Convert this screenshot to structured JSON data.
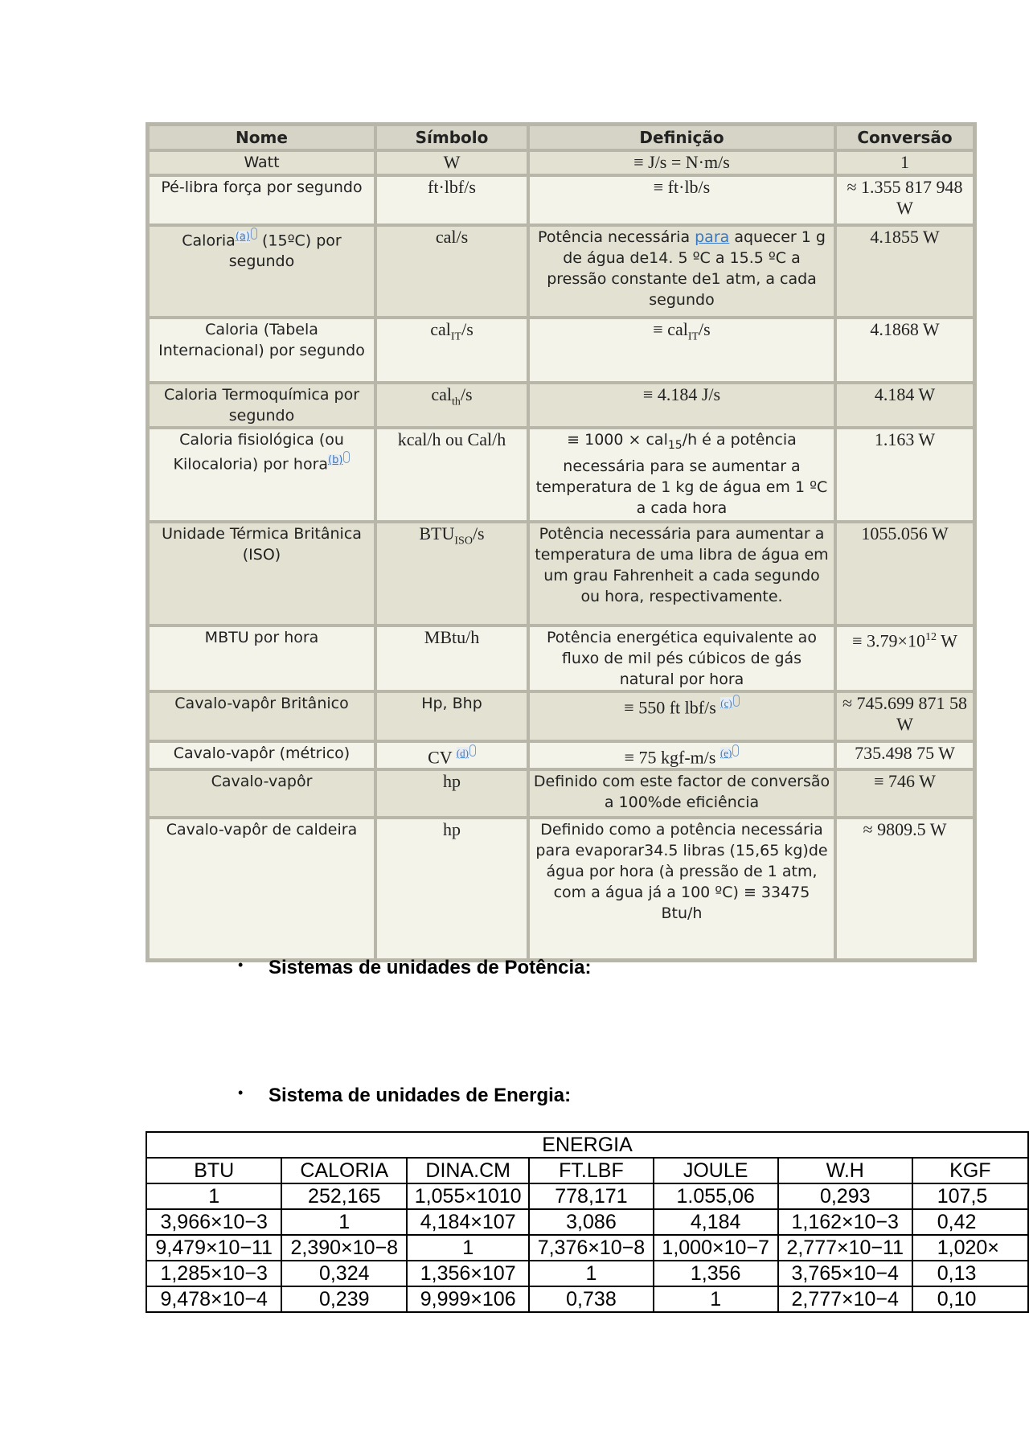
{
  "power_table": {
    "headers": [
      "Nome",
      "Símbolo",
      "Definição",
      "Conversão"
    ],
    "rows": [
      {
        "name": [
          {
            "t": "Watt"
          }
        ],
        "symbol": [
          {
            "t": "W"
          }
        ],
        "definition": [
          {
            "t": "≡ J/s = N·m/s"
          }
        ],
        "def_serif": true,
        "conversion": [
          {
            "t": "1"
          }
        ]
      },
      {
        "name": [
          {
            "t": "Pé-libra força por segundo"
          }
        ],
        "symbol": [
          {
            "t": "ft·lbf/s"
          }
        ],
        "definition": [
          {
            "t": "≡ ft·lb/s"
          }
        ],
        "def_serif": true,
        "conversion": [
          {
            "t": "≈ 1.355 817 948 W"
          }
        ]
      },
      {
        "name": [
          {
            "t": "Caloria"
          },
          {
            "ref": "(a)"
          },
          {
            "t": " (15ºC) por segundo"
          }
        ],
        "symbol": [
          {
            "t": "cal/s"
          }
        ],
        "definition": [
          {
            "t": "Potência necessária "
          },
          {
            "link": "para"
          },
          {
            "t": " aquecer 1 g de água de14. 5 ºC a 15.5 ºC a pressão constante de1 atm, a cada segundo"
          }
        ],
        "conversion": [
          {
            "t": "4.1855 W"
          }
        ]
      },
      {
        "name": [
          {
            "t": "Caloria (Tabela Internacional) por segundo"
          }
        ],
        "symbol": [
          {
            "t": "cal"
          },
          {
            "sub": "IT"
          },
          {
            "t": "/s"
          }
        ],
        "definition": [
          {
            "t": "≡ cal"
          },
          {
            "sub": "IT"
          },
          {
            "t": "/s"
          }
        ],
        "def_serif": true,
        "conversion": [
          {
            "t": "4.1868 W"
          }
        ]
      },
      {
        "name": [
          {
            "t": "Caloria Termoquímica por segundo"
          }
        ],
        "symbol": [
          {
            "t": "cal"
          },
          {
            "sub": "th"
          },
          {
            "t": "/s"
          }
        ],
        "definition": [
          {
            "t": "≡ 4.184 J/s"
          }
        ],
        "def_serif": true,
        "conversion": [
          {
            "t": "4.184 W"
          }
        ]
      },
      {
        "name": [
          {
            "t": "Caloria fisiológica (ou Kilocaloria) por hora"
          },
          {
            "ref": "(b)"
          }
        ],
        "symbol": [
          {
            "t": "kcal/h ou Cal/h"
          }
        ],
        "definition": [
          {
            "t": "≡ 1000 × cal"
          },
          {
            "sub": "15"
          },
          {
            "t": "/h é a potência necessária para se aumentar a temperatura de 1 kg de água em 1 ºC a cada hora"
          }
        ],
        "conversion": [
          {
            "t": "1.163 W"
          }
        ]
      },
      {
        "name": [
          {
            "t": "Unidade Térmica Britânica (ISO)"
          }
        ],
        "symbol": [
          {
            "t": "BTU"
          },
          {
            "sub": "ISO"
          },
          {
            "t": "/s"
          }
        ],
        "definition": [
          {
            "t": "Potência necessária para aumentar a temperatura de uma libra de água em um grau Fahrenheit a cada segundo ou hora, respectivamente."
          }
        ],
        "conversion": [
          {
            "t": "1055.056 W"
          }
        ]
      },
      {
        "name": [
          {
            "t": "MBTU por hora"
          }
        ],
        "symbol": [
          {
            "t": "MBtu/h"
          }
        ],
        "definition": [
          {
            "t": "Potência energética equivalente ao fluxo de mil pés cúbicos de gás natural por hora"
          }
        ],
        "conversion": [
          {
            "t": "≡ 3.79×10"
          },
          {
            "sup": "12"
          },
          {
            "t": " W"
          }
        ]
      },
      {
        "name": [
          {
            "t": "Cavalo-vapôr Britânico"
          }
        ],
        "symbol": [
          {
            "t": "Hp, Bhp"
          }
        ],
        "sym_sans": true,
        "definition": [
          {
            "t": "≡ 550 ft lbf/s "
          },
          {
            "ref": "(c)"
          }
        ],
        "def_serif": true,
        "conversion": [
          {
            "t": "≈ 745.699 871 58 W"
          }
        ]
      },
      {
        "name": [
          {
            "t": "Cavalo-vapôr (métrico)"
          }
        ],
        "symbol": [
          {
            "t": "CV "
          },
          {
            "ref": "(d)"
          }
        ],
        "definition": [
          {
            "t": "≡ 75 kgf-m/s "
          },
          {
            "ref": "(e)"
          }
        ],
        "def_serif": true,
        "conversion": [
          {
            "t": "735.498 75 W"
          }
        ]
      },
      {
        "name": [
          {
            "t": "Cavalo-vapôr"
          }
        ],
        "symbol": [
          {
            "t": "hp"
          }
        ],
        "definition": [
          {
            "t": "Definido com este factor de conversão a 100%de eficiência"
          }
        ],
        "conversion": [
          {
            "t": "≡ 746 W"
          }
        ]
      },
      {
        "name": [
          {
            "t": "Cavalo-vapôr de caldeira"
          }
        ],
        "symbol": [
          {
            "t": "hp"
          }
        ],
        "definition": [
          {
            "t": "Definido como a potência necessária para evaporar34.5 libras (15,65 kg)de água por hora (à pressão de 1 atm, com a água já a 100 ºC) ≡ 33475 Btu/h"
          }
        ],
        "conversion": [
          {
            "t": "≈ 9809.5 W"
          }
        ]
      }
    ]
  },
  "bullets": {
    "power_systems": "Sistemas de unidades de Potência:",
    "energy_systems": "Sistema de unidades de Energia:"
  },
  "energy_table": {
    "title": "ENERGIA",
    "headers": [
      "BTU",
      "CALORIA",
      "DINA.CM",
      "FT.LBF",
      "JOULE",
      "W.H",
      "KGF"
    ],
    "rows": [
      [
        "1",
        "252,165",
        "1,055×1010",
        "778,171",
        "1.055,06",
        "0,293",
        "107,5"
      ],
      [
        "3,966×10−3",
        "1",
        "4,184×107",
        "3,086",
        "4,184",
        "1,162×10−3",
        "0,42"
      ],
      [
        "9,479×10−11",
        "2,390×10−8",
        "1",
        "7,376×10−8",
        "1,000×10−7",
        "2,777×10−11",
        "1,020×"
      ],
      [
        "1,285×10−3",
        "0,324",
        "1,356×107",
        "1",
        "1,356",
        "3,765×10−4",
        "0,13"
      ],
      [
        "9,478×10−4",
        "0,239",
        "9,999×106",
        "0,738",
        "1",
        "2,777×10−4",
        "0,10"
      ]
    ]
  },
  "colors": {
    "header_bg": "#d6d4c6",
    "row_dark": "#e2e1d2",
    "row_light": "#f4f3ea",
    "border": "#b8b6a8",
    "link": "#3a78c2"
  }
}
